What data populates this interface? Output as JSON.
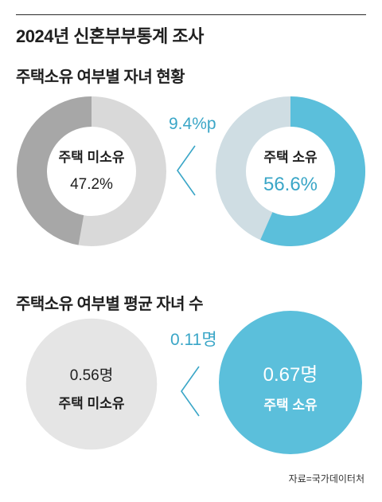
{
  "title": "2024년 신혼부부통계 조사",
  "colors": {
    "blue": "#5bbfdb",
    "blue_light": "#cfdde3",
    "gray_dark": "#a7a7a7",
    "gray_light": "#d9d9d9",
    "diff_blue": "#3aa6c7"
  },
  "chart_data": [
    {
      "type": "pie",
      "title": "주택소유 여부별 자녀 현황",
      "unit": "%",
      "difference_label": "9.4%p",
      "series": [
        {
          "name": "주택 미소유",
          "value": 47.2,
          "label": "47.2%"
        },
        {
          "name": "주택 소유",
          "value": 56.6,
          "label": "56.6%"
        }
      ]
    },
    {
      "type": "bar",
      "title": "주택소유 여부별 평균 자녀 수",
      "unit": "명",
      "difference_label": "0.11명",
      "series": [
        {
          "name": "주택 미소유",
          "value": 0.56,
          "label": "0.56명"
        },
        {
          "name": "주택 소유",
          "value": 0.67,
          "label": "0.67명"
        }
      ]
    }
  ],
  "source": "자료=국가데이터처"
}
